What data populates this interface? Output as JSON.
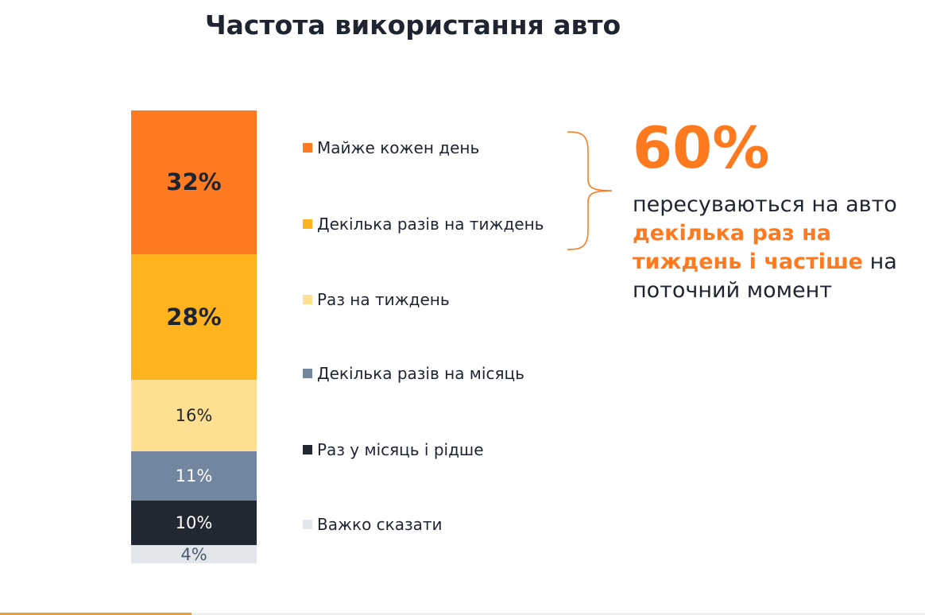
{
  "title": "Частота використання авто",
  "chart_data": {
    "type": "bar",
    "stacked": true,
    "title": "Частота використання авто",
    "categories": [
      ""
    ],
    "series": [
      {
        "name": "Майже кожен день",
        "values": [
          32
        ],
        "label": "32%",
        "color": "#ff7a21"
      },
      {
        "name": "Декілька разів на тиждень",
        "values": [
          28
        ],
        "label": "28%",
        "color": "#ffb41f"
      },
      {
        "name": "Раз на тиждень",
        "values": [
          16
        ],
        "label": "16%",
        "color": "#ffe093"
      },
      {
        "name": "Декілька разів на місяць",
        "values": [
          11
        ],
        "label": "11%",
        "color": "#73869f"
      },
      {
        "name": "Раз у місяць і рідше",
        "values": [
          10
        ],
        "label": "10%",
        "color": "#212832"
      },
      {
        "name": "Важко сказати",
        "values": [
          4
        ],
        "label": "4%",
        "color": "#e3e6ea"
      }
    ],
    "legend": "right",
    "grid": false
  },
  "callout": {
    "number": "60%",
    "text_before": "пересуваються на авто ",
    "highlight": "декілька раз на тиждень і частіше",
    "text_after": " на поточний момент",
    "color": "#ff7a1f"
  }
}
